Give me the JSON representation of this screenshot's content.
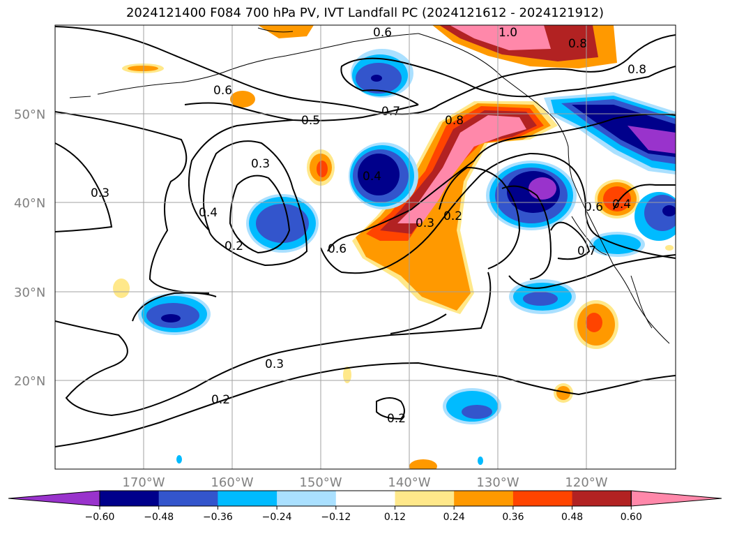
{
  "title": "2024121400 F084 700 hPa PV, IVT Landfall PC (2024121612 - 2024121912)",
  "map": {
    "lat_labels": [
      "50°N",
      "40°N",
      "30°N",
      "20°N"
    ],
    "lon_labels": [
      "170°W",
      "160°W",
      "150°W",
      "140°W",
      "130°W",
      "120°W"
    ],
    "contour_labels": [
      "0.6",
      "1.0",
      "0.8",
      "0.8",
      "0.6",
      "0.5",
      "0.7",
      "0.8",
      "0.3",
      "0.3",
      "0.4",
      "0.4",
      "0.2",
      "0.6",
      "0.3",
      "0.2",
      "0.4",
      "0.6",
      "0.7",
      "0.3",
      "0.2",
      "0.2"
    ]
  },
  "colorbar": {
    "ticks": [
      "−0.60",
      "−0.48",
      "−0.36",
      "−0.24",
      "−0.12",
      "0.12",
      "0.24",
      "0.36",
      "0.48",
      "0.60"
    ],
    "colors": [
      "#9933cc",
      "#00008b",
      "#3355cc",
      "#00bbff",
      "#aae0ff",
      "#ffffff",
      "#ffe88a",
      "#ff9900",
      "#ff4400",
      "#b22222",
      "#ff88aa"
    ]
  }
}
